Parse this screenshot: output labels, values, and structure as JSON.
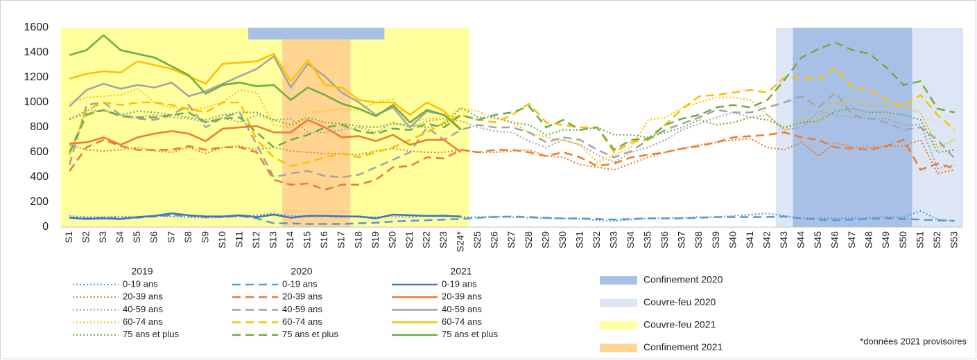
{
  "chart_data": {
    "type": "line",
    "categories": [
      "S1",
      "S2",
      "S3",
      "S4",
      "S5",
      "S6",
      "S7",
      "S8",
      "S9",
      "S10",
      "S11",
      "S12",
      "S13",
      "S14",
      "S15",
      "S16",
      "S17",
      "S18",
      "S19",
      "S20",
      "S21",
      "S22",
      "S23",
      "S24*",
      "S25",
      "S26",
      "S27",
      "S28",
      "S29",
      "S30",
      "S31",
      "S32",
      "S33",
      "S34",
      "S35",
      "S36",
      "S37",
      "S38",
      "S39",
      "S40",
      "S41",
      "S42",
      "S43",
      "S44",
      "S45",
      "S46",
      "S47",
      "S48",
      "S49",
      "S50",
      "S51",
      "S52",
      "S53"
    ],
    "ylim": [
      0,
      1600
    ],
    "yticks": [
      0,
      200,
      400,
      600,
      800,
      1000,
      1200,
      1400,
      1600
    ],
    "bands": [
      {
        "name": "Couvre-feu 2021",
        "color": "#ffff9e",
        "spans": [
          {
            "from": "S1",
            "to": "S24*"
          }
        ]
      },
      {
        "name": "Confinement 2021",
        "color": "#ffd591",
        "spans": [
          {
            "from": "S14",
            "to": "S17"
          }
        ]
      },
      {
        "name": "Couvre-feu 2020",
        "color": "#dce6f4",
        "spans": [
          {
            "from": "S43",
            "to": "S53"
          }
        ]
      },
      {
        "name": "Confinement 2020",
        "color": "#a9c0e6",
        "spans": [
          {
            "from": "S12",
            "to": "S19",
            "strip": true
          },
          {
            "from": "S44",
            "to": "S50"
          }
        ]
      }
    ],
    "footnote": "*données 2021 provisoires",
    "series_groups": [
      {
        "name": "2019",
        "dash": "dotted",
        "series": [
          {
            "name": "0-19 ans",
            "color": "#5b9bd5",
            "values": [
              90,
              80,
              80,
              85,
              80,
              90,
              85,
              80,
              75,
              80,
              85,
              95,
              110,
              90,
              85,
              90,
              90,
              80,
              80,
              85,
              80,
              90,
              95,
              80,
              80,
              85,
              80,
              75,
              70,
              70,
              65,
              55,
              50,
              60,
              70,
              70,
              75,
              80,
              80,
              90,
              100,
              110,
              90,
              70,
              75,
              70,
              70,
              75,
              80,
              80,
              130,
              60,
              50
            ]
          },
          {
            "name": "20-39 ans",
            "color": "#ed7d31",
            "values": [
              660,
              620,
              610,
              620,
              640,
              610,
              600,
              640,
              590,
              640,
              650,
              620,
              640,
              610,
              600,
              590,
              590,
              580,
              610,
              630,
              610,
              600,
              600,
              620,
              600,
              600,
              610,
              620,
              570,
              560,
              500,
              480,
              460,
              510,
              560,
              600,
              630,
              660,
              680,
              700,
              710,
              640,
              620,
              680,
              570,
              680,
              640,
              640,
              650,
              650,
              700,
              430,
              460
            ]
          },
          {
            "name": "40-59 ans",
            "color": "#a5a5a5",
            "values": [
              860,
              940,
              930,
              900,
              880,
              900,
              880,
              870,
              840,
              880,
              840,
              900,
              860,
              870,
              760,
              760,
              780,
              800,
              760,
              840,
              800,
              850,
              870,
              850,
              800,
              770,
              760,
              690,
              640,
              700,
              660,
              580,
              520,
              600,
              640,
              700,
              780,
              830,
              880,
              920,
              880,
              900,
              780,
              800,
              930,
              900,
              880,
              870,
              870,
              820,
              820,
              470,
              500
            ]
          },
          {
            "name": "60-74 ans",
            "color": "#ffc000",
            "values": [
              1000,
              1040,
              1050,
              1060,
              1110,
              1000,
              960,
              940,
              960,
              1000,
              1100,
              1080,
              820,
              800,
              920,
              930,
              950,
              940,
              1000,
              1030,
              840,
              870,
              870,
              950,
              930,
              870,
              840,
              760,
              720,
              700,
              660,
              520,
              580,
              640,
              860,
              880,
              960,
              1000,
              1040,
              1040,
              1020,
              900,
              780,
              860,
              860,
              1000,
              1020,
              980,
              960,
              960,
              920,
              640,
              700
            ]
          },
          {
            "name": "75 ans et plus",
            "color": "#70ad47",
            "values": [
              870,
              910,
              940,
              900,
              930,
              920,
              900,
              880,
              860,
              900,
              920,
              920,
              860,
              820,
              880,
              840,
              830,
              810,
              800,
              830,
              820,
              800,
              820,
              960,
              880,
              880,
              840,
              820,
              740,
              780,
              780,
              800,
              740,
              740,
              720,
              760,
              800,
              860,
              820,
              840,
              880,
              860,
              800,
              840,
              850,
              930,
              950,
              920,
              920,
              900,
              860,
              600,
              620
            ]
          }
        ]
      },
      {
        "name": "2020",
        "dash": "dashed",
        "series": [
          {
            "name": "0-19 ans",
            "color": "#5b9bd5",
            "values": [
              75,
              70,
              75,
              70,
              75,
              85,
              95,
              90,
              80,
              80,
              90,
              70,
              30,
              30,
              25,
              25,
              25,
              30,
              35,
              45,
              50,
              55,
              60,
              65,
              75,
              80,
              85,
              80,
              75,
              70,
              70,
              65,
              60,
              65,
              70,
              70,
              70,
              75,
              80,
              80,
              80,
              80,
              85,
              70,
              60,
              55,
              60,
              65,
              70,
              65,
              60,
              55,
              50
            ]
          },
          {
            "name": "20-39 ans",
            "color": "#ed7d31",
            "values": [
              450,
              640,
              700,
              650,
              620,
              620,
              620,
              650,
              620,
              640,
              640,
              600,
              380,
              340,
              350,
              300,
              340,
              340,
              380,
              480,
              490,
              560,
              550,
              620,
              600,
              620,
              620,
              600,
              570,
              600,
              560,
              490,
              510,
              560,
              580,
              600,
              630,
              650,
              680,
              720,
              730,
              740,
              760,
              720,
              700,
              640,
              630,
              620,
              650,
              700,
              460,
              510,
              470
            ]
          },
          {
            "name": "40-59 ans",
            "color": "#a5a5a5",
            "values": [
              500,
              980,
              1000,
              900,
              870,
              860,
              900,
              980,
              800,
              880,
              920,
              660,
              400,
              430,
              450,
              410,
              400,
              420,
              480,
              540,
              600,
              800,
              700,
              780,
              820,
              800,
              800,
              760,
              680,
              720,
              700,
              620,
              560,
              610,
              700,
              780,
              830,
              880,
              940,
              920,
              920,
              960,
              1000,
              1050,
              960,
              1080,
              900,
              870,
              840,
              780,
              800,
              700,
              550
            ]
          },
          {
            "name": "60-74 ans",
            "color": "#ffc000",
            "values": [
              580,
              940,
              1000,
              980,
              1000,
              1000,
              980,
              950,
              920,
              1000,
              1000,
              700,
              560,
              490,
              520,
              560,
              590,
              560,
              600,
              640,
              700,
              760,
              840,
              900,
              860,
              840,
              900,
              990,
              840,
              820,
              800,
              800,
              600,
              680,
              700,
              820,
              950,
              1050,
              1060,
              1080,
              1100,
              1080,
              1200,
              1200,
              1180,
              1280,
              1120,
              1100,
              1020,
              970,
              1060,
              900,
              780
            ]
          },
          {
            "name": "75 ans et plus",
            "color": "#70ad47",
            "values": [
              600,
              900,
              940,
              890,
              880,
              880,
              900,
              920,
              840,
              870,
              880,
              760,
              640,
              700,
              740,
              800,
              820,
              770,
              750,
              790,
              780,
              830,
              800,
              900,
              860,
              900,
              920,
              970,
              800,
              860,
              780,
              800,
              620,
              700,
              710,
              820,
              870,
              900,
              960,
              980,
              960,
              1020,
              1180,
              1360,
              1430,
              1480,
              1420,
              1390,
              1280,
              1140,
              1170,
              950,
              920
            ]
          }
        ]
      },
      {
        "name": "2021",
        "dash": "solid",
        "series": [
          {
            "name": "0-19 ans",
            "color": "#4472c4",
            "values": [
              75,
              65,
              70,
              65,
              80,
              90,
              110,
              95,
              85,
              85,
              95,
              80,
              100,
              75,
              90,
              90,
              85,
              85,
              70,
              100,
              95,
              90,
              90,
              85,
              null,
              null,
              null,
              null,
              null,
              null,
              null,
              null,
              null,
              null,
              null,
              null,
              null,
              null,
              null,
              null,
              null,
              null,
              null,
              null,
              null,
              null,
              null,
              null,
              null,
              null,
              null,
              null,
              null
            ]
          },
          {
            "name": "20-39 ans",
            "color": "#ed7d31",
            "values": [
              670,
              680,
              720,
              660,
              720,
              750,
              770,
              750,
              690,
              790,
              800,
              810,
              760,
              760,
              860,
              800,
              720,
              730,
              690,
              740,
              660,
              700,
              700,
              600,
              null,
              null,
              null,
              null,
              null,
              null,
              null,
              null,
              null,
              null,
              null,
              null,
              null,
              null,
              null,
              null,
              null,
              null,
              null,
              null,
              null,
              null,
              null,
              null,
              null,
              null,
              null,
              null,
              null
            ]
          },
          {
            "name": "40-59 ans",
            "color": "#a5a5a5",
            "values": [
              970,
              1100,
              1150,
              1110,
              1140,
              1120,
              1160,
              1050,
              1090,
              1150,
              1210,
              1270,
              1370,
              1120,
              1310,
              1210,
              1080,
              1000,
              900,
              960,
              800,
              930,
              900,
              780,
              null,
              null,
              null,
              null,
              null,
              null,
              null,
              null,
              null,
              null,
              null,
              null,
              null,
              null,
              null,
              null,
              null,
              null,
              null,
              null,
              null,
              null,
              null,
              null,
              null,
              null,
              null,
              null,
              null
            ]
          },
          {
            "name": "60-74 ans",
            "color": "#ffc000",
            "values": [
              1190,
              1230,
              1250,
              1240,
              1330,
              1300,
              1270,
              1210,
              1150,
              1310,
              1320,
              1330,
              1390,
              1170,
              1340,
              1140,
              1120,
              1020,
              1000,
              1000,
              900,
              1000,
              930,
              780,
              null,
              null,
              null,
              null,
              null,
              null,
              null,
              null,
              null,
              null,
              null,
              null,
              null,
              null,
              null,
              null,
              null,
              null,
              null,
              null,
              null,
              null,
              null,
              null,
              null,
              null,
              null,
              null,
              null
            ]
          },
          {
            "name": "75 ans et plus",
            "color": "#70ad47",
            "values": [
              1380,
              1420,
              1540,
              1420,
              1390,
              1360,
              1290,
              1220,
              1070,
              1140,
              1160,
              1130,
              1140,
              1020,
              1120,
              1060,
              990,
              950,
              890,
              980,
              840,
              940,
              900,
              780,
              null,
              null,
              null,
              null,
              null,
              null,
              null,
              null,
              null,
              null,
              null,
              null,
              null,
              null,
              null,
              null,
              null,
              null,
              null,
              null,
              null,
              null,
              null,
              null,
              null,
              null,
              null,
              null,
              null
            ]
          }
        ]
      }
    ]
  }
}
